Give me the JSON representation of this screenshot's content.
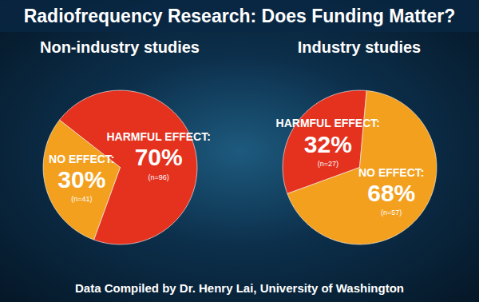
{
  "title": "Radiofrequency Research: Does Funding Matter?",
  "caption": "Data Compiled by Dr. Henry Lai, University of Washington",
  "chart_data": [
    {
      "type": "pie",
      "title": "Non-industry studies",
      "categories": [
        "HARMFUL EFFECT:",
        "NO EFFECT:"
      ],
      "values": [
        70,
        30
      ],
      "value_labels": [
        "70%",
        "30%"
      ],
      "count_labels": [
        "(n=96)",
        "(n=41)"
      ],
      "colors": [
        "#e5321f",
        "#f3a01e"
      ],
      "data_labels": true
    },
    {
      "type": "pie",
      "title": "Industry studies",
      "categories": [
        "HARMFUL EFFECT:",
        "NO EFFECT:"
      ],
      "values": [
        32,
        68
      ],
      "value_labels": [
        "32%",
        "68%"
      ],
      "count_labels": [
        "(n=27)",
        "(n=57)"
      ],
      "colors": [
        "#e5321f",
        "#f3a01e"
      ],
      "data_labels": true
    }
  ]
}
